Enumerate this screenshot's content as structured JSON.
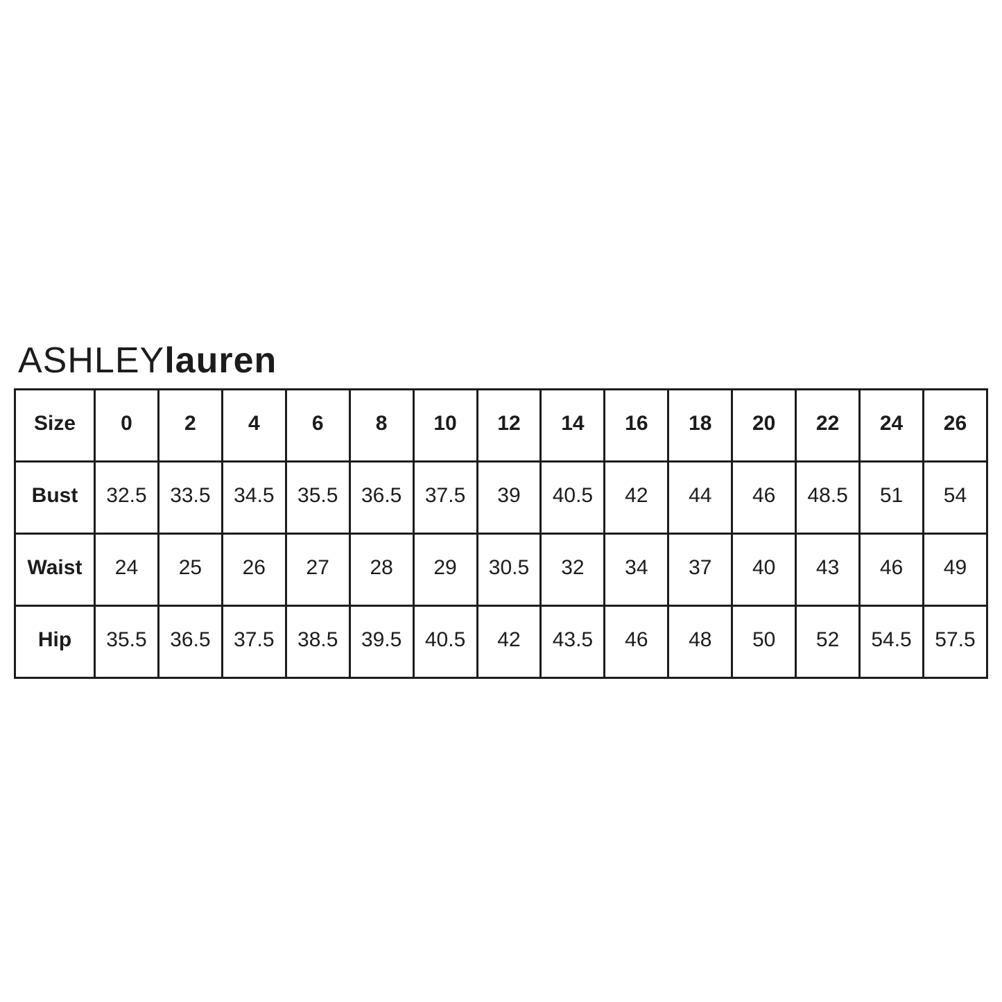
{
  "logo": {
    "brand_first": "ASHLEY",
    "brand_second": "lauren"
  },
  "colors": {
    "background": "#ffffff",
    "text": "#1c1c1c",
    "border": "#1c1c1c"
  },
  "chart_data": {
    "type": "table",
    "columns": [
      "Size",
      "0",
      "2",
      "4",
      "6",
      "8",
      "10",
      "12",
      "14",
      "16",
      "18",
      "20",
      "22",
      "24",
      "26"
    ],
    "rows": [
      {
        "label": "Bust",
        "values": [
          "32.5",
          "33.5",
          "34.5",
          "35.5",
          "36.5",
          "37.5",
          "39",
          "40.5",
          "42",
          "44",
          "46",
          "48.5",
          "51",
          "54"
        ]
      },
      {
        "label": "Waist",
        "values": [
          "24",
          "25",
          "26",
          "27",
          "28",
          "29",
          "30.5",
          "32",
          "34",
          "37",
          "40",
          "43",
          "46",
          "49"
        ]
      },
      {
        "label": "Hip",
        "values": [
          "35.5",
          "36.5",
          "37.5",
          "38.5",
          "39.5",
          "40.5",
          "42",
          "43.5",
          "46",
          "48",
          "50",
          "52",
          "54.5",
          "57.5"
        ]
      }
    ],
    "layout": {
      "grid": true,
      "header_row_bold": true,
      "label_column_bold": true
    }
  }
}
